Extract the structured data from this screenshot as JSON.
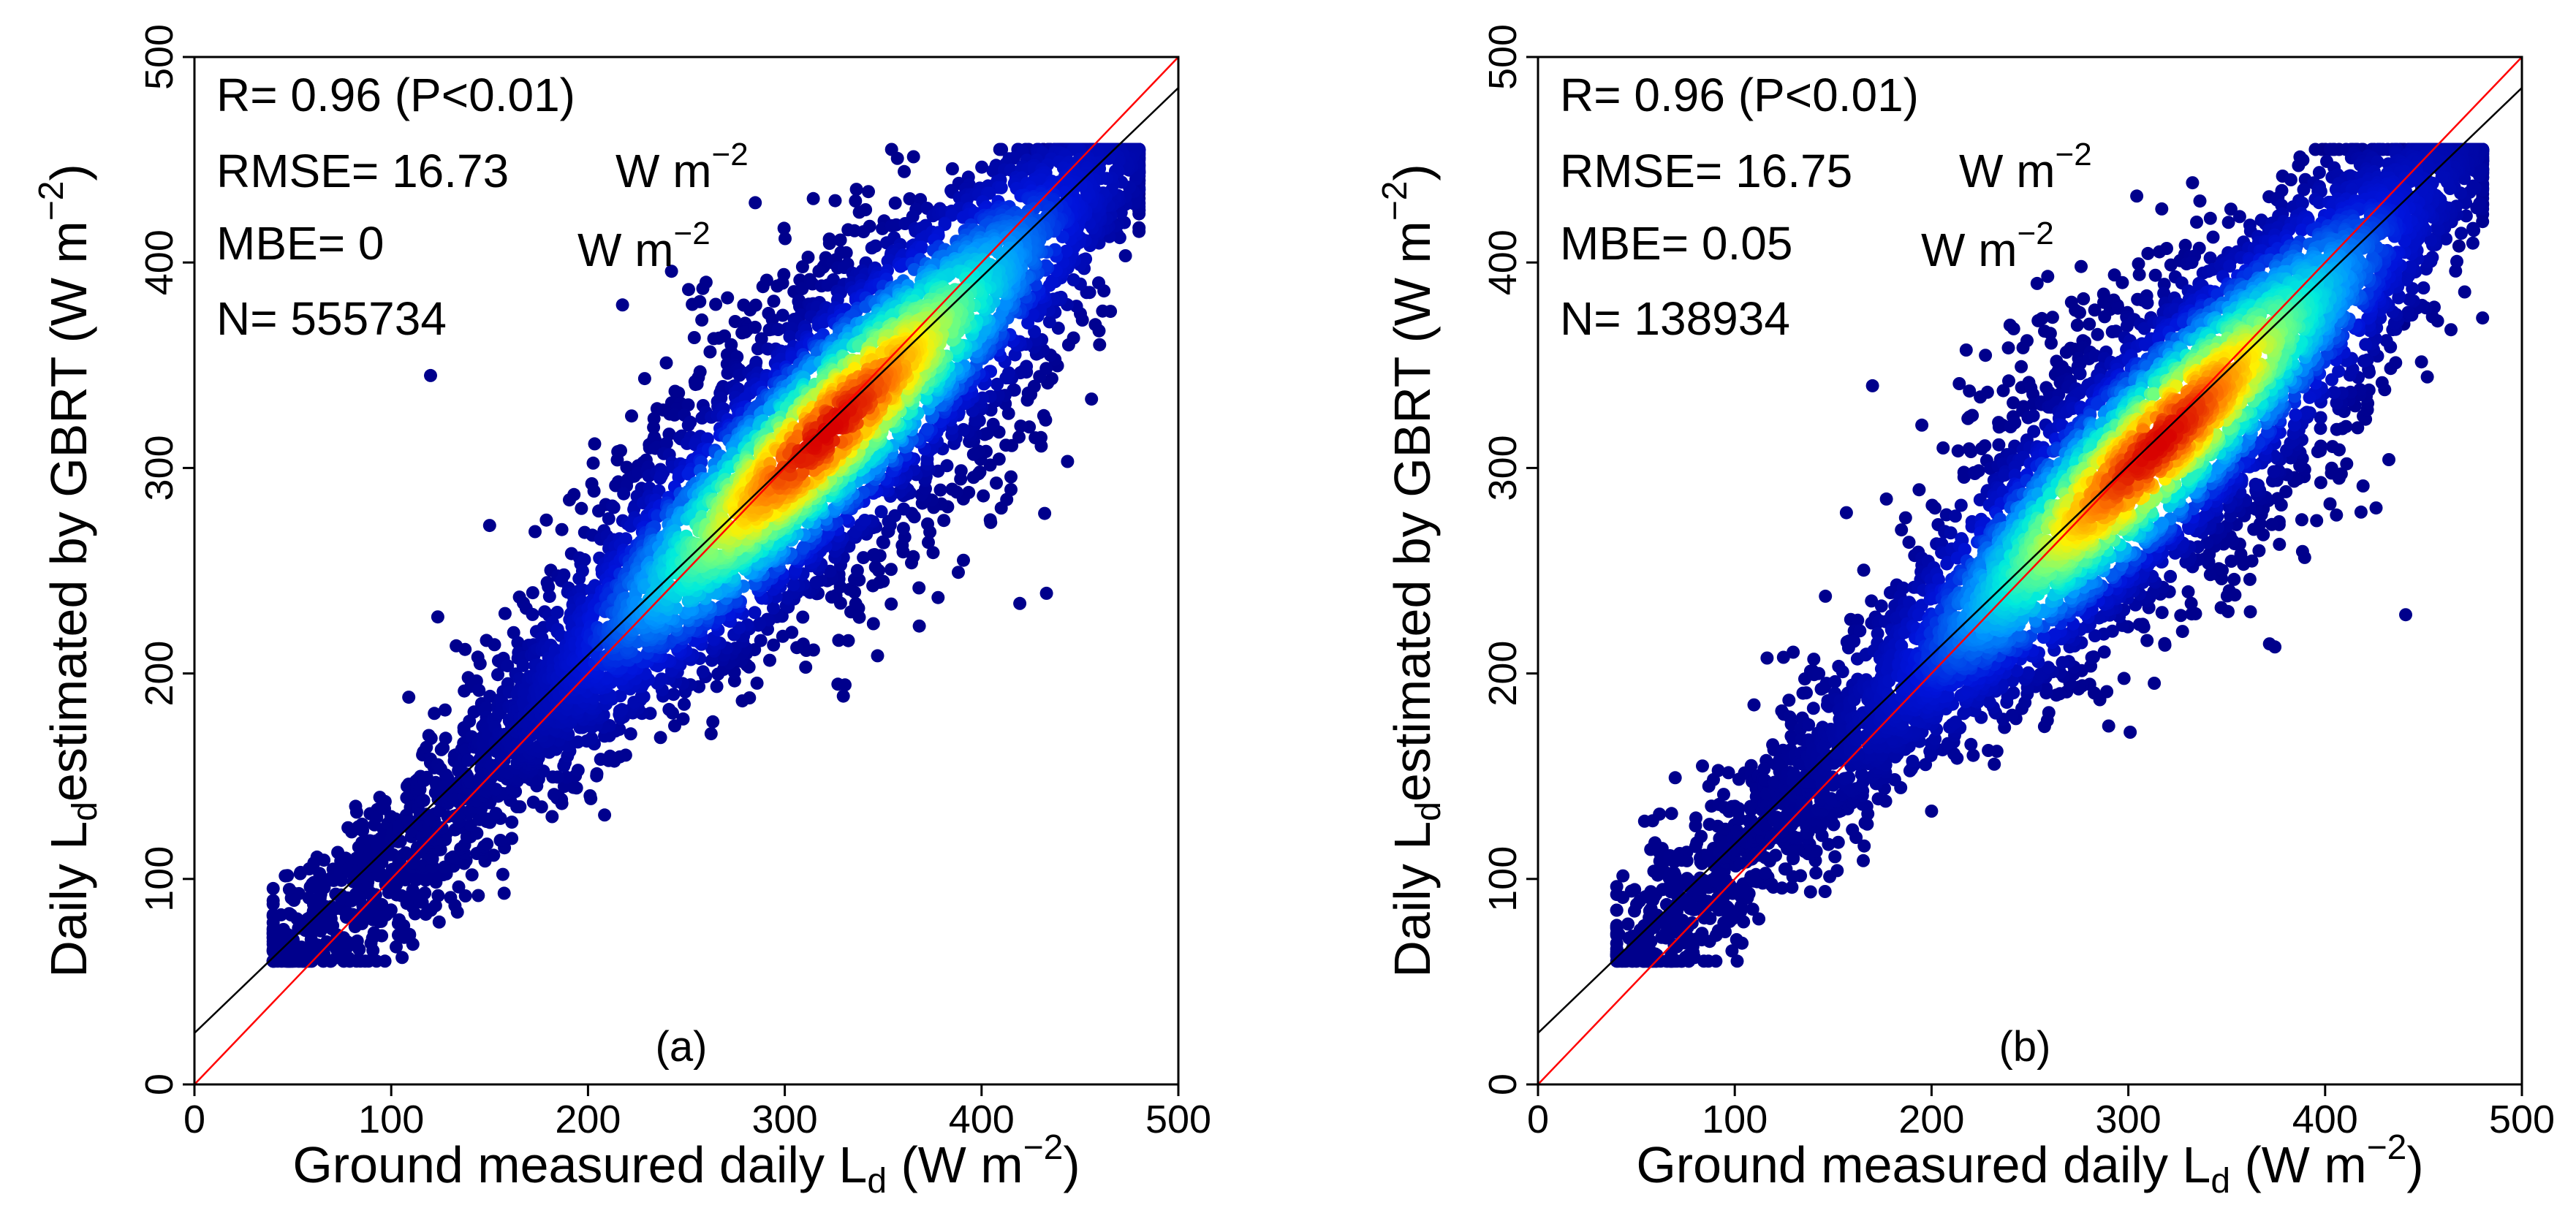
{
  "chart_data": [
    {
      "type": "scatter",
      "panel_label": "(a)",
      "xlabel": "Ground measured daily L",
      "xlabel_sub": "d",
      "xlabel_unit": "(W m",
      "xlabel_unit_sup": "−2",
      "xlabel_unit_close": ")",
      "ylabel_pre": "Daily L",
      "ylabel_sub": "d",
      "ylabel_post": "estimated by GBRT (W m",
      "ylabel_sup": "−2",
      "ylabel_close": ")",
      "xlim": [
        0,
        500
      ],
      "ylim": [
        0,
        500
      ],
      "xticks": [
        0,
        100,
        200,
        300,
        400,
        500
      ],
      "yticks": [
        0,
        100,
        200,
        300,
        400,
        500
      ],
      "stats": {
        "r": "R= 0.96 (P<0.01)",
        "rmse": "RMSE= 16.73",
        "rmse_unit": "W m",
        "mbe": "MBE= 0",
        "mbe_unit": "W m",
        "unit_sup": "−2",
        "n": "N= 555734"
      },
      "reference_lines": [
        {
          "name": "1:1 line",
          "color": "#ff0000",
          "slope": 1.0,
          "intercept": 0
        },
        {
          "name": "fit line",
          "color": "#000000",
          "slope": 0.92,
          "intercept": 25
        }
      ],
      "density_core": {
        "center": [
          322,
          322
        ],
        "spread_major": 165,
        "spread_minor": 30
      },
      "outliers": [
        [
          433,
          239
        ],
        [
          120,
          345
        ],
        [
          460,
          360
        ],
        [
          150,
          272
        ],
        [
          45,
          62
        ],
        [
          475,
          445
        ]
      ]
    },
    {
      "type": "scatter",
      "panel_label": "(b)",
      "xlabel": "Ground measured daily L",
      "xlabel_sub": "d",
      "xlabel_unit": "(W m",
      "xlabel_unit_sup": "−2",
      "xlabel_unit_close": ")",
      "ylabel_pre": "Daily L",
      "ylabel_sub": "d",
      "ylabel_post": "estimated by GBRT (W m",
      "ylabel_sup": "−2",
      "ylabel_close": ")",
      "xlim": [
        0,
        500
      ],
      "ylim": [
        0,
        500
      ],
      "xticks": [
        0,
        100,
        200,
        300,
        400,
        500
      ],
      "yticks": [
        0,
        100,
        200,
        300,
        400,
        500
      ],
      "stats": {
        "r": "R= 0.96 (P<0.01)",
        "rmse": "RMSE= 16.75",
        "rmse_unit": "W m",
        "mbe": "MBE= 0.05",
        "mbe_unit": "W m",
        "unit_sup": "−2",
        "n": "N= 138934"
      },
      "reference_lines": [
        {
          "name": "1:1 line",
          "color": "#ff0000",
          "slope": 1.0,
          "intercept": 0
        },
        {
          "name": "fit line",
          "color": "#000000",
          "slope": 0.92,
          "intercept": 25
        }
      ],
      "density_core": {
        "center": [
          315,
          315
        ],
        "spread_major": 160,
        "spread_minor": 28
      },
      "outliers": [
        [
          362,
          230
        ],
        [
          170,
          340
        ],
        [
          200,
          133
        ],
        [
          468,
          408
        ],
        [
          50,
          62
        ],
        [
          440,
          370
        ]
      ]
    }
  ]
}
